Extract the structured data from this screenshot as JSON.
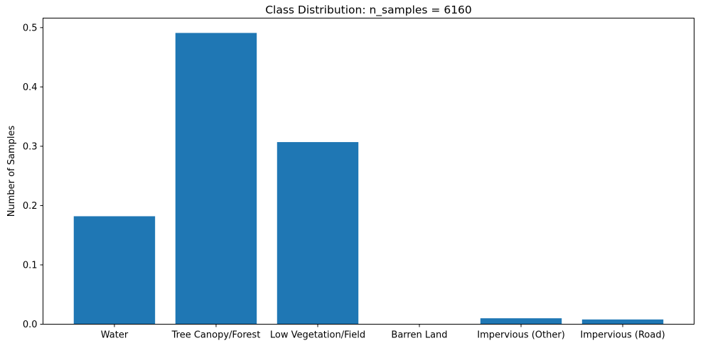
{
  "chart_data": {
    "type": "bar",
    "title": "Class Distribution: n_samples = 6160",
    "xlabel": "",
    "ylabel": "Number of Samples",
    "categories": [
      "Water",
      "Tree Canopy/Forest",
      "Low Vegetation/Field",
      "Barren Land",
      "Impervious (Other)",
      "Impervious (Road)"
    ],
    "values": [
      0.182,
      0.491,
      0.307,
      0.0,
      0.01,
      0.008
    ],
    "ylim": [
      0,
      0.516
    ],
    "yticks": [
      0.0,
      0.1,
      0.2,
      0.3,
      0.4,
      0.5
    ],
    "ytick_labels": [
      "0.0",
      "0.1",
      "0.2",
      "0.3",
      "0.4",
      "0.5"
    ],
    "grid": false,
    "legend": "none",
    "colors": {
      "bar": "#1f77b4",
      "axis": "#000000",
      "background": "#ffffff"
    }
  }
}
